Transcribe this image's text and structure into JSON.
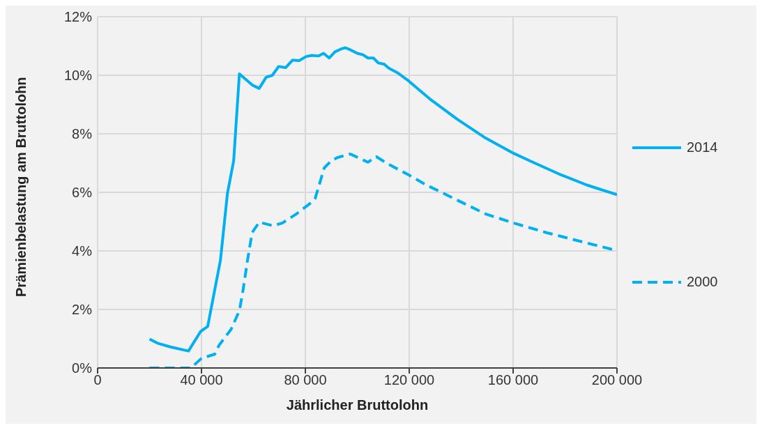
{
  "chart_data": {
    "type": "line",
    "xlabel": "Jährlicher Bruttolohn",
    "ylabel": "Prämienbelastung am Bruttolohn",
    "xlim": [
      0,
      200000
    ],
    "xticks": [
      0,
      {
        "value": 40000,
        "label": "40 000"
      },
      {
        "value": 80000,
        "label": "80 000"
      },
      {
        "value": 120000,
        "label": "120 000"
      },
      {
        "value": 160000,
        "label": "160 000"
      },
      {
        "value": 200000,
        "label": "200 000"
      }
    ],
    "ylim": [
      0,
      12
    ],
    "yticks": [
      {
        "value": 0,
        "label": "0%"
      },
      {
        "value": 2,
        "label": "2%"
      },
      {
        "value": 4,
        "label": "4%"
      },
      {
        "value": 6,
        "label": "6%"
      },
      {
        "value": 8,
        "label": "8%"
      },
      {
        "value": 10,
        "label": "10%"
      },
      {
        "value": 12,
        "label": "12%"
      }
    ],
    "grid": true,
    "legend": "right",
    "marker": "none",
    "series": [
      {
        "name": "2014",
        "color": "#00b0f0",
        "line_style": "solid",
        "x": [
          20000,
          23000,
          28000,
          35000,
          39700,
          42400,
          47300,
          50000,
          52400,
          54600,
          59500,
          62200,
          64900,
          67300,
          69700,
          72400,
          75100,
          77600,
          80300,
          82400,
          85100,
          87000,
          89200,
          91400,
          93800,
          95400,
          97300,
          100000,
          102200,
          104100,
          106200,
          108100,
          110300,
          112200,
          115400,
          119700,
          127800,
          138600,
          149500,
          160300,
          167600,
          177600,
          188400,
          200000
        ],
        "values": [
          0.99,
          0.85,
          0.72,
          0.58,
          1.25,
          1.42,
          3.68,
          5.97,
          7.08,
          10.05,
          9.67,
          9.55,
          9.93,
          10.0,
          10.3,
          10.26,
          10.52,
          10.5,
          10.64,
          10.68,
          10.66,
          10.75,
          10.59,
          10.8,
          10.9,
          10.94,
          10.87,
          10.75,
          10.7,
          10.59,
          10.59,
          10.42,
          10.38,
          10.24,
          10.09,
          9.81,
          9.2,
          8.49,
          7.85,
          7.33,
          7.03,
          6.63,
          6.25,
          5.92
        ]
      },
      {
        "name": "2000",
        "color": "#00b0f0",
        "line_style": "dashed",
        "x": [
          20000,
          36000,
          40000,
          45100,
          46800,
          51400,
          54600,
          55900,
          57600,
          59500,
          62200,
          67600,
          71100,
          76500,
          82400,
          83800,
          87300,
          90000,
          92400,
          97300,
          104100,
          107300,
          111600,
          119700,
          126200,
          138600,
          149500,
          160300,
          173000,
          188400,
          200000
        ],
        "values": [
          0,
          0,
          0.33,
          0.47,
          0.78,
          1.32,
          1.96,
          2.59,
          3.61,
          4.62,
          4.98,
          4.86,
          4.95,
          5.26,
          5.66,
          5.8,
          6.84,
          7.08,
          7.19,
          7.31,
          7.03,
          7.22,
          6.98,
          6.6,
          6.27,
          5.73,
          5.26,
          4.95,
          4.62,
          4.27,
          4.01
        ]
      }
    ]
  }
}
